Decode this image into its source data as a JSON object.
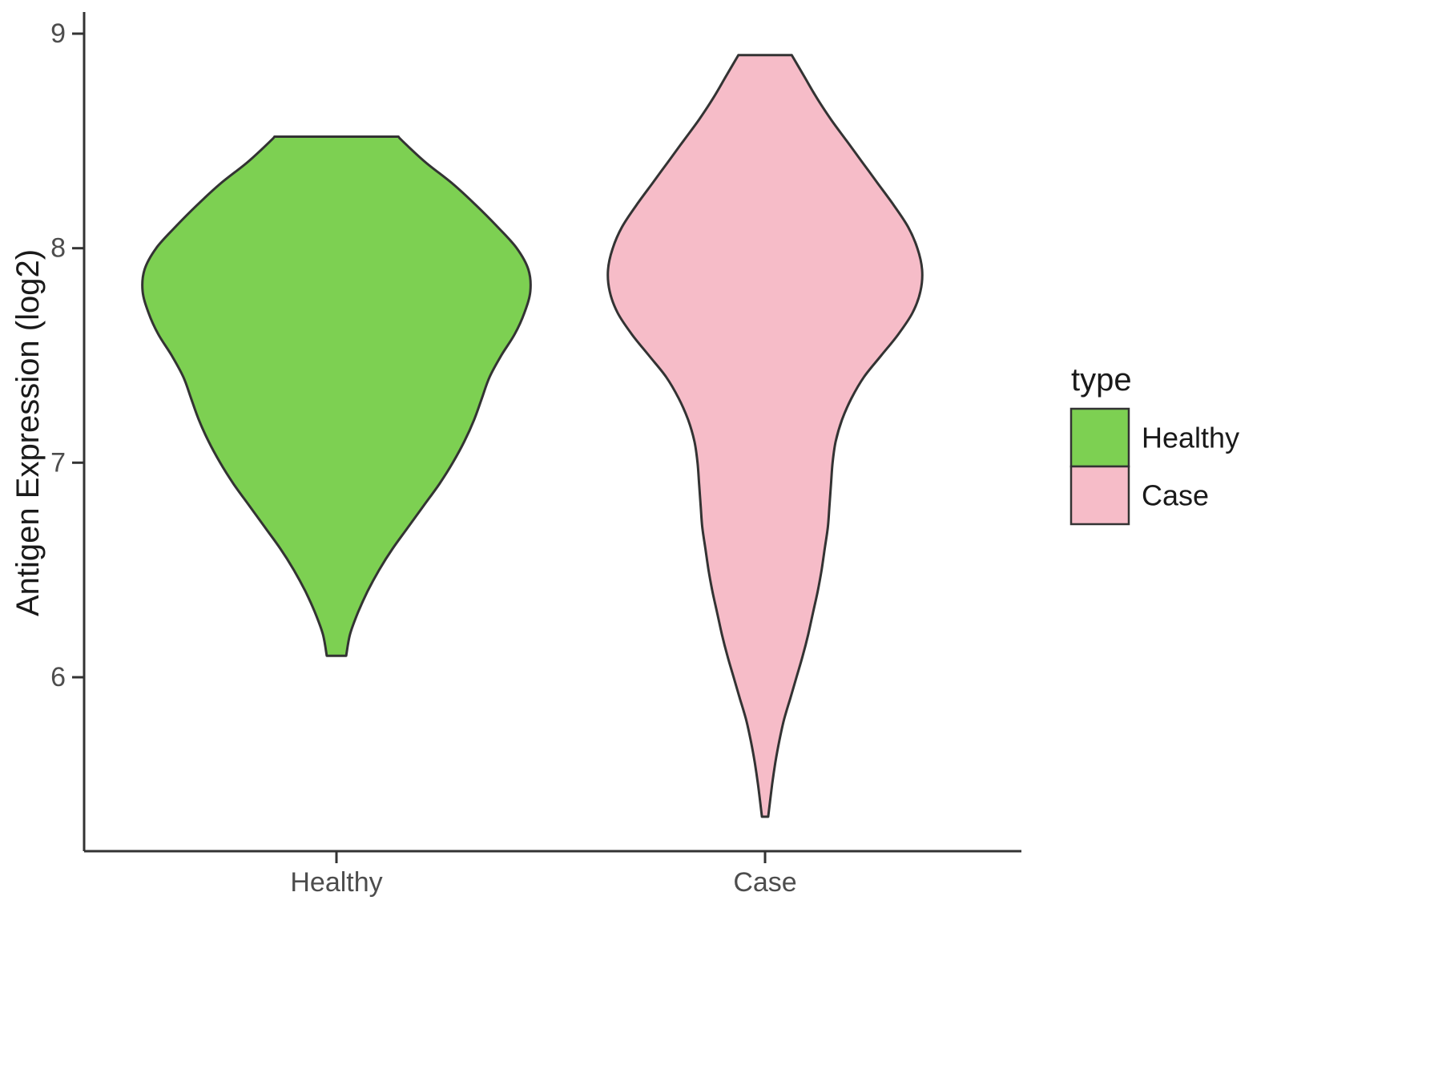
{
  "chart_data": {
    "type": "violin",
    "title": "",
    "xlabel": "",
    "ylabel": "Antigen Expression (log2)",
    "ylim": [
      5.2,
      9.1
    ],
    "yticks": [
      6,
      7,
      8,
      9
    ],
    "categories": [
      "Healthy",
      "Case"
    ],
    "grid": false,
    "legend": {
      "title": "type",
      "position": "right",
      "entries": [
        {
          "label": "Healthy",
          "color": "#7dd052"
        },
        {
          "label": "Case",
          "color": "#f6bcc8"
        }
      ]
    },
    "outline_color": "#333333",
    "series": [
      {
        "name": "Healthy",
        "color": "#7dd052",
        "value_range": [
          6.1,
          8.52
        ],
        "peak_value": 7.8,
        "density_profile": [
          [
            6.1,
            0.05
          ],
          [
            6.2,
            0.07
          ],
          [
            6.3,
            0.11
          ],
          [
            6.4,
            0.16
          ],
          [
            6.5,
            0.22
          ],
          [
            6.6,
            0.29
          ],
          [
            6.7,
            0.37
          ],
          [
            6.8,
            0.45
          ],
          [
            6.9,
            0.53
          ],
          [
            7.0,
            0.6
          ],
          [
            7.1,
            0.66
          ],
          [
            7.2,
            0.71
          ],
          [
            7.3,
            0.75
          ],
          [
            7.4,
            0.79
          ],
          [
            7.5,
            0.85
          ],
          [
            7.6,
            0.92
          ],
          [
            7.7,
            0.97
          ],
          [
            7.8,
            1.0
          ],
          [
            7.9,
            0.99
          ],
          [
            8.0,
            0.93
          ],
          [
            8.1,
            0.83
          ],
          [
            8.2,
            0.72
          ],
          [
            8.3,
            0.6
          ],
          [
            8.4,
            0.46
          ],
          [
            8.5,
            0.34
          ],
          [
            8.52,
            0.32
          ]
        ]
      },
      {
        "name": "Case",
        "color": "#f6bcc8",
        "value_range": [
          5.35,
          8.9
        ],
        "peak_value": 7.9,
        "density_profile": [
          [
            5.35,
            0.02
          ],
          [
            5.5,
            0.045
          ],
          [
            5.6,
            0.065
          ],
          [
            5.7,
            0.09
          ],
          [
            5.8,
            0.12
          ],
          [
            5.9,
            0.16
          ],
          [
            6.0,
            0.2
          ],
          [
            6.1,
            0.24
          ],
          [
            6.2,
            0.275
          ],
          [
            6.3,
            0.305
          ],
          [
            6.4,
            0.335
          ],
          [
            6.5,
            0.36
          ],
          [
            6.6,
            0.38
          ],
          [
            6.7,
            0.4
          ],
          [
            6.8,
            0.41
          ],
          [
            6.9,
            0.42
          ],
          [
            7.0,
            0.43
          ],
          [
            7.1,
            0.45
          ],
          [
            7.2,
            0.49
          ],
          [
            7.3,
            0.55
          ],
          [
            7.4,
            0.63
          ],
          [
            7.5,
            0.74
          ],
          [
            7.6,
            0.85
          ],
          [
            7.7,
            0.94
          ],
          [
            7.8,
            0.99
          ],
          [
            7.9,
            1.0
          ],
          [
            8.0,
            0.97
          ],
          [
            8.1,
            0.91
          ],
          [
            8.2,
            0.82
          ],
          [
            8.3,
            0.72
          ],
          [
            8.4,
            0.62
          ],
          [
            8.5,
            0.52
          ],
          [
            8.6,
            0.42
          ],
          [
            8.7,
            0.33
          ],
          [
            8.8,
            0.25
          ],
          [
            8.9,
            0.17
          ]
        ]
      }
    ]
  }
}
